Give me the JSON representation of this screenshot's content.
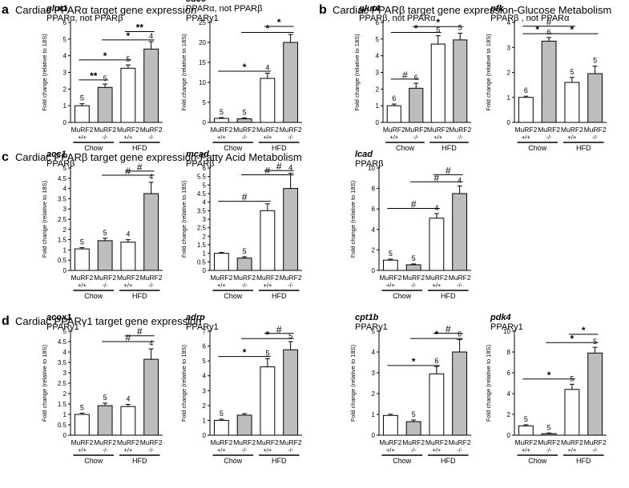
{
  "sections": [
    {
      "letter": "a",
      "title": "Cardiac PPARα target gene expression"
    },
    {
      "letter": "b",
      "title": "Cardiac PPARβ target gene expression-Glucose Metabolism"
    },
    {
      "letter": "c",
      "title": "Cardiac PPARβ target gene expression-Fatty Acid Metabolism"
    },
    {
      "letter": "d",
      "title": "Cardiac PPARγ1 target gene expression"
    }
  ],
  "common": {
    "ylabel": "Fold change (relative to 18S)",
    "groups": [
      {
        "line1": "MuRF2",
        "line2": "+/+"
      },
      {
        "line1": "MuRF2",
        "line2": "-/-"
      },
      {
        "line1": "MuRF2",
        "line2": "+/+"
      },
      {
        "line1": "MuRF2",
        "line2": "-/-"
      }
    ],
    "diets": [
      "Chow",
      "HFD"
    ]
  },
  "chart_data": [
    {
      "type": "bar",
      "gene": "glut1",
      "subtitle": [
        "PPARα, not PPARβ"
      ],
      "ylim": [
        0,
        6
      ],
      "yticks": [
        0,
        1,
        2,
        3,
        4,
        5,
        6
      ],
      "values": [
        1.0,
        2.1,
        3.25,
        4.4
      ],
      "errors": [
        0.12,
        0.2,
        0.2,
        0.45
      ],
      "n": [
        "5",
        "5",
        "5",
        "4"
      ],
      "annotations": [
        {
          "from": 0,
          "to": 1,
          "y": 2.55,
          "label": "**"
        },
        {
          "from": 0,
          "to": 2,
          "y": 3.75,
          "label": "*"
        },
        {
          "from": 1,
          "to": 3,
          "y": 4.95,
          "label": "*"
        },
        {
          "from": 2,
          "to": 3,
          "y": 5.45,
          "label": "**"
        }
      ]
    },
    {
      "type": "bar",
      "gene": "cd36",
      "subtitle": [
        "PPARα, not PPARβ",
        "PPARγ1"
      ],
      "ylim": [
        0,
        25
      ],
      "yticks": [
        0,
        5,
        10,
        15,
        20,
        25
      ],
      "values": [
        1.0,
        0.9,
        11.0,
        20.0
      ],
      "errors": [
        0.2,
        0.25,
        1.3,
        2.0
      ],
      "n": [
        "5",
        "5",
        "4",
        ""
      ],
      "annotations": [
        {
          "from": 0,
          "to": 2,
          "y": 12.8,
          "label": "*"
        },
        {
          "from": 1,
          "to": 3,
          "y": 22.5,
          "label": "*"
        },
        {
          "from": 2,
          "to": 3,
          "y": 24.0,
          "label": "*"
        }
      ]
    },
    {
      "type": "bar",
      "gene": "glut4",
      "subtitle": [
        "PPARβ, not PPARα"
      ],
      "ylim": [
        0,
        6
      ],
      "yticks": [
        0,
        1,
        2,
        3,
        4,
        5,
        6
      ],
      "values": [
        1.0,
        2.05,
        4.7,
        4.95
      ],
      "errors": [
        0.1,
        0.3,
        0.5,
        0.4
      ],
      "n": [
        "6",
        "6",
        "5",
        "5"
      ],
      "annotations": [
        {
          "from": 0,
          "to": 1,
          "y": 2.6,
          "label": "#"
        },
        {
          "from": 0,
          "to": 2,
          "y": 5.4,
          "label": "*"
        },
        {
          "from": 1,
          "to": 3,
          "y": 5.75,
          "label": "*"
        }
      ]
    },
    {
      "type": "bar",
      "gene": "pfk",
      "subtitle": [
        "PPARβ , not PPARα"
      ],
      "ylim": [
        0,
        4
      ],
      "yticks": [
        0,
        1,
        2,
        3,
        4
      ],
      "values": [
        1.0,
        3.25,
        1.6,
        1.95
      ],
      "errors": [
        0.05,
        0.15,
        0.2,
        0.3
      ],
      "n": [
        "6",
        "6",
        "5",
        "5"
      ],
      "annotations": [
        {
          "from": 0,
          "to": 2,
          "y": 3.85,
          "label": "#"
        },
        {
          "from": 0,
          "to": 1,
          "y": 3.55,
          "label": "*"
        },
        {
          "from": 1,
          "to": 3,
          "y": 3.55,
          "label": "*"
        }
      ]
    },
    {
      "type": "bar",
      "gene": "acc1",
      "subtitle": [
        "PPARβ"
      ],
      "ylim": [
        0,
        5
      ],
      "yticks": [
        0,
        0.5,
        1,
        1.5,
        2,
        2.5,
        3,
        3.5,
        4,
        4.5,
        5
      ],
      "values": [
        1.05,
        1.45,
        1.38,
        3.75
      ],
      "errors": [
        0.06,
        0.12,
        0.12,
        0.55
      ],
      "n": [
        "5",
        "5",
        "4",
        "4"
      ],
      "annotations": [
        {
          "from": 1,
          "to": 3,
          "y": 4.65,
          "label": "#"
        },
        {
          "from": 2,
          "to": 3,
          "y": 4.85,
          "label": "#"
        }
      ]
    },
    {
      "type": "bar",
      "gene": "mcad",
      "subtitle": [
        "PPARβ"
      ],
      "ylim": [
        0,
        6
      ],
      "yticks": [
        0,
        0.5,
        1,
        1.5,
        2,
        2.5,
        3,
        3.5,
        4,
        4.5,
        5,
        5.5,
        6
      ],
      "values": [
        1.0,
        0.72,
        3.5,
        4.8
      ],
      "errors": [
        0.05,
        0.08,
        0.4,
        0.9
      ],
      "n": [
        "",
        "5",
        "",
        "4"
      ],
      "annotations": [
        {
          "from": 0,
          "to": 2,
          "y": 4.05,
          "label": "#"
        },
        {
          "from": 1,
          "to": 3,
          "y": 5.6,
          "label": "#"
        },
        {
          "from": 2,
          "to": 3,
          "y": 5.85,
          "label": "#"
        }
      ]
    },
    {
      "type": "bar",
      "gene": "lcad",
      "subtitle": [
        "PPARβ"
      ],
      "ylim": [
        0,
        10
      ],
      "yticks": [
        0,
        2,
        4,
        6,
        8,
        10
      ],
      "values": [
        1.0,
        0.55,
        5.1,
        7.5
      ],
      "errors": [
        0.1,
        0.08,
        0.45,
        0.75
      ],
      "n": [
        "5",
        "5",
        "4",
        "4"
      ],
      "annotations": [
        {
          "from": 0,
          "to": 2,
          "y": 6.05,
          "label": "#"
        },
        {
          "from": 1,
          "to": 3,
          "y": 8.65,
          "label": "#"
        },
        {
          "from": 2,
          "to": 3,
          "y": 9.35,
          "label": "#"
        }
      ]
    },
    {
      "type": "bar",
      "gene": "acox1",
      "subtitle": [
        "PPARγ1"
      ],
      "ylim": [
        0,
        5
      ],
      "yticks": [
        0,
        0.5,
        1,
        1.5,
        2,
        2.5,
        3,
        3.5,
        4,
        4.5,
        5
      ],
      "values": [
        1.0,
        1.42,
        1.38,
        3.65
      ],
      "errors": [
        0.06,
        0.12,
        0.1,
        0.5
      ],
      "n": [
        "5",
        "5",
        "4",
        "4"
      ],
      "annotations": [
        {
          "from": 1,
          "to": 3,
          "y": 4.5,
          "label": "#"
        },
        {
          "from": 2,
          "to": 3,
          "y": 4.78,
          "label": "#"
        }
      ]
    },
    {
      "type": "bar",
      "gene": "adrp",
      "subtitle": [
        "PPARγ1"
      ],
      "ylim": [
        0,
        7
      ],
      "yticks": [
        0,
        1,
        2,
        3,
        4,
        5,
        6,
        7
      ],
      "values": [
        1.0,
        1.35,
        4.6,
        5.75
      ],
      "errors": [
        0.08,
        0.1,
        0.55,
        0.55
      ],
      "n": [
        "5",
        "",
        "5",
        "5"
      ],
      "annotations": [
        {
          "from": 0,
          "to": 2,
          "y": 5.3,
          "label": "*"
        },
        {
          "from": 1,
          "to": 3,
          "y": 6.5,
          "label": "*"
        },
        {
          "from": 2,
          "to": 3,
          "y": 6.85,
          "label": "#"
        }
      ]
    },
    {
      "type": "bar",
      "gene": "cpt1b",
      "subtitle": [
        "PPARγ1"
      ],
      "ylim": [
        0,
        5
      ],
      "yticks": [
        0,
        1,
        2,
        3,
        4,
        5
      ],
      "values": [
        0.95,
        0.65,
        2.95,
        4.0
      ],
      "errors": [
        0.06,
        0.08,
        0.35,
        0.6
      ],
      "n": [
        "",
        "5",
        "6",
        "6"
      ],
      "annotations": [
        {
          "from": 0,
          "to": 2,
          "y": 3.35,
          "label": "*"
        },
        {
          "from": 1,
          "to": 3,
          "y": 4.65,
          "label": "*"
        },
        {
          "from": 2,
          "to": 3,
          "y": 4.9,
          "label": "#"
        }
      ]
    },
    {
      "type": "bar",
      "gene": "pdk4",
      "subtitle": [
        "PPARγ1"
      ],
      "ylim": [
        0,
        10
      ],
      "yticks": [
        0,
        2,
        4,
        6,
        8,
        10
      ],
      "values": [
        0.9,
        0.15,
        4.4,
        7.9
      ],
      "errors": [
        0.1,
        0.06,
        0.5,
        0.55
      ],
      "n": [
        "5",
        "5",
        "5",
        "5"
      ],
      "annotations": [
        {
          "from": 0,
          "to": 2,
          "y": 5.4,
          "label": "*"
        },
        {
          "from": 1,
          "to": 3,
          "y": 8.9,
          "label": "*"
        },
        {
          "from": 2,
          "to": 3,
          "y": 9.7,
          "label": "*"
        }
      ]
    }
  ]
}
